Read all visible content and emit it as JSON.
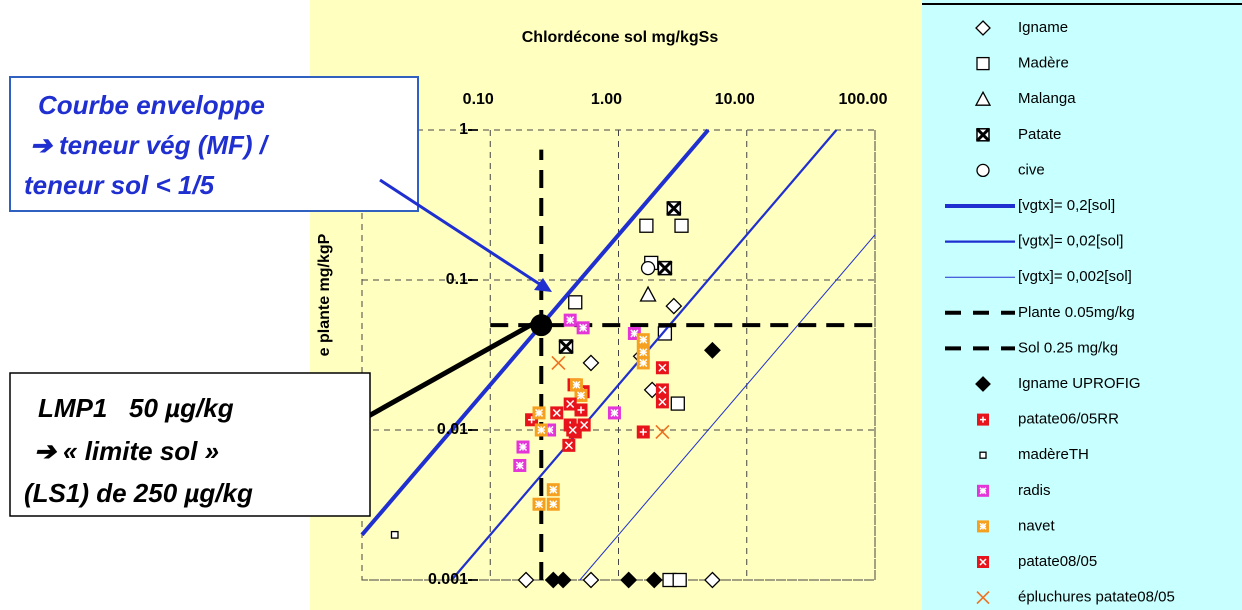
{
  "chart_data": {
    "type": "scatter",
    "title": "Chlordécone sol mg/kgSs",
    "y_label": "e plante mg/kgP",
    "xscale": "log",
    "yscale": "log",
    "grid": true,
    "xlim": [
      0.01,
      100
    ],
    "ylim": [
      0.001,
      1
    ],
    "xticks": [
      {
        "value": 0.1,
        "label": "0.10"
      },
      {
        "value": 1,
        "label": "1.00"
      },
      {
        "value": 10,
        "label": "10.00"
      },
      {
        "value": 100,
        "label": "100.00"
      }
    ],
    "yticks": [
      0.001,
      0.01,
      0.1,
      1
    ],
    "series": [
      {
        "name": "Igname",
        "marker": "diamond-open",
        "color": "#000000",
        "x": [
          2.7,
          0.61,
          1.83,
          1.5,
          0.19,
          0.61,
          5.4
        ],
        "values": [
          0.067,
          0.028,
          0.0185,
          0.031,
          0.001,
          0.001,
          0.001
        ]
      },
      {
        "name": "Madère",
        "marker": "square-open",
        "color": "#000000",
        "x": [
          1.65,
          3.1,
          1.8,
          2.3,
          2.9,
          0.46,
          2.5,
          3.0
        ],
        "values": [
          0.23,
          0.23,
          0.13,
          0.044,
          0.015,
          0.071,
          0.001,
          0.001
        ]
      },
      {
        "name": "Malanga",
        "marker": "triangle-open",
        "color": "#000000",
        "x": [
          1.7
        ],
        "values": [
          0.08
        ]
      },
      {
        "name": "Patate",
        "marker": "square-x",
        "color": "#000000",
        "x": [
          2.7,
          2.3,
          0.39
        ],
        "values": [
          0.3,
          0.12,
          0.036
        ]
      },
      {
        "name": "cive",
        "marker": "circle-open",
        "color": "#000000",
        "x": [
          1.7
        ],
        "values": [
          0.12
        ]
      },
      {
        "name": "[vgtx]= 0,2[sol]",
        "marker": "line",
        "color": "#1f2fd0",
        "line_width": 4,
        "dash": false,
        "x": [
          0.01,
          5
        ],
        "values": [
          0.002,
          1
        ]
      },
      {
        "name": "[vgtx]= 0,02[sol]",
        "marker": "line",
        "color": "#1f2fd0",
        "line_width": 2.2,
        "dash": false,
        "x": [
          0.05,
          50
        ],
        "values": [
          0.001,
          1
        ]
      },
      {
        "name": "[vgtx]= 0,002[sol]",
        "marker": "line",
        "color": "#1f2fd0",
        "line_width": 1,
        "dash": false,
        "x": [
          0.5,
          100
        ],
        "values": [
          0.001,
          0.2
        ]
      },
      {
        "name": "Plante 0.05mg/kg",
        "marker": "line",
        "color": "#000000",
        "line_width": 4,
        "dash": true,
        "x": [
          0.1,
          100
        ],
        "values": [
          0.05,
          0.05
        ]
      },
      {
        "name": "Sol 0.25 mg/kg",
        "marker": "line",
        "color": "#000000",
        "line_width": 4,
        "dash": true,
        "x": [
          0.25,
          0.25
        ],
        "values": [
          0.001,
          0.74
        ]
      },
      {
        "name": "Igname UPROFIG",
        "marker": "diamond-filled",
        "color": "#000000",
        "x": [
          5.4,
          0.31,
          0.37,
          1.2,
          1.9
        ],
        "values": [
          0.034,
          0.001,
          0.001,
          0.001,
          0.001
        ]
      },
      {
        "name": "patate06/05RR",
        "marker": "square-plus",
        "color": "#e8141b",
        "x": [
          0.45,
          0.53,
          0.51,
          0.42,
          0.46,
          0.21,
          1.56
        ],
        "values": [
          0.02,
          0.018,
          0.0136,
          0.0108,
          0.0097,
          0.0117,
          0.0097
        ]
      },
      {
        "name": "madèreTH",
        "marker": "square-small",
        "color": "#000000",
        "x": [
          0.018
        ],
        "values": [
          0.002
        ]
      },
      {
        "name": "radis",
        "marker": "square-star",
        "color": "#e436d8",
        "x": [
          0.42,
          0.53,
          1.33,
          0.93,
          0.18,
          0.17,
          0.29
        ],
        "values": [
          0.054,
          0.048,
          0.044,
          0.013,
          0.0077,
          0.0058,
          0.01
        ]
      },
      {
        "name": "navet",
        "marker": "square-star",
        "color": "#f6a020",
        "x": [
          1.56,
          1.56,
          1.56,
          0.47,
          0.51,
          0.24,
          0.25,
          0.24,
          0.31,
          0.31
        ],
        "values": [
          0.04,
          0.033,
          0.028,
          0.02,
          0.017,
          0.013,
          0.01,
          0.0032,
          0.004,
          0.0032
        ]
      },
      {
        "name": "patate08/05",
        "marker": "square-xw",
        "color": "#e8141b",
        "x": [
          2.2,
          2.2,
          2.2,
          0.42,
          0.33,
          0.44,
          0.41,
          0.54
        ],
        "values": [
          0.026,
          0.0185,
          0.0154,
          0.0149,
          0.013,
          0.01,
          0.0079,
          0.0108
        ]
      },
      {
        "name": "épluchures patate08/05",
        "marker": "cross",
        "color": "#f07020",
        "x": [
          0.34,
          2.2
        ],
        "values": [
          0.028,
          0.0097
        ]
      },
      {
        "marker": "dot",
        "color": "#000000",
        "x": [
          0.25
        ],
        "values": [
          0.05
        ]
      }
    ],
    "annotations": [
      {
        "lines": [
          "Courbe enveloppe",
          "➔ teneur vég (MF) /",
          "teneur sol < 1/5"
        ]
      },
      {
        "lines": [
          "LMP1   50 µg/kg",
          "➔  « limite sol »",
          "(LS1) de 250 µg/kg"
        ]
      }
    ]
  }
}
